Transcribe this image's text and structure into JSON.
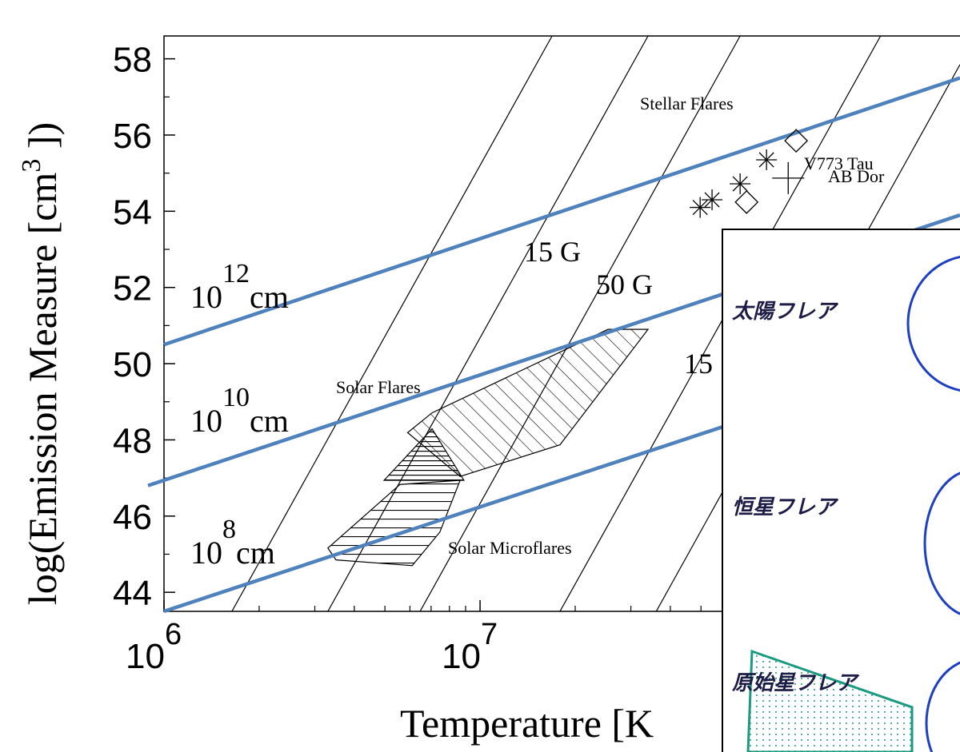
{
  "chart_data": {
    "type": "line",
    "x_label": "Temperature  [K",
    "y_label": {
      "text": "log(Emission Measure  [cm",
      "sup": "3",
      "end": " ])"
    },
    "xscale": "log",
    "xlim": [
      1000000,
      330000000
    ],
    "ylim": [
      43.5,
      58.6
    ],
    "xticks": [
      {
        "value": 1000000,
        "label": "10",
        "sup": "6"
      },
      {
        "value": 10000000,
        "label": "10",
        "sup": "7"
      }
    ],
    "xminor": [
      2000000,
      3000000,
      4000000,
      5000000,
      6000000,
      7000000,
      8000000,
      9000000,
      20000000,
      30000000,
      40000000,
      50000000,
      60000000,
      70000000,
      80000000,
      90000000,
      200000000,
      300000000
    ],
    "yticks": [
      44,
      46,
      48,
      50,
      52,
      54,
      56,
      58
    ],
    "yminor": [
      45,
      47,
      49,
      51,
      53,
      55,
      57
    ],
    "series": [
      {
        "color": "#4f81bd",
        "x": [
          1000000,
          330000000
        ],
        "values": [
          50.5,
          57.5
        ],
        "label": {
          "base": "10",
          "exp": "12",
          "unit": "cm"
        }
      },
      {
        "color": "#4f81bd",
        "x": [
          890000,
          330000000
        ],
        "values": [
          46.8,
          53.9
        ],
        "label": {
          "base": "10",
          "exp": "10",
          "unit": "cm"
        }
      },
      {
        "color": "#4f81bd",
        "x": [
          1000000,
          330000000
        ],
        "values": [
          43.5,
          50.4
        ],
        "label": {
          "base": "10",
          "exp": "8",
          "unit": "cm"
        }
      },
      {
        "color": "#000000",
        "x": [
          1640000,
          16900000
        ],
        "values": [
          43.5,
          58.6
        ]
      },
      {
        "color": "#000000",
        "x": [
          3300000,
          34000000
        ],
        "values": [
          43.5,
          58.6
        ]
      },
      {
        "color": "#000000",
        "x": [
          6460000,
          66500000
        ],
        "values": [
          43.5,
          58.6
        ]
      },
      {
        "color": "#000000",
        "x": [
          17900000,
          185000000
        ],
        "values": [
          43.5,
          58.6
        ]
      },
      {
        "color": "#000000",
        "x": [
          36100000,
          330000000
        ],
        "values": [
          43.5,
          57.85
        ]
      }
    ],
    "markers": [
      {
        "marker": "asterisk",
        "x": [
          49700000,
          54200000,
          66500000,
          80600000
        ],
        "values": [
          54.1,
          54.3,
          54.72,
          55.35
        ]
      },
      {
        "marker": "diamond",
        "x": [
          69700000,
          100000000
        ],
        "values": [
          54.24,
          55.85
        ]
      },
      {
        "marker": "plus",
        "x": [
          94400000
        ],
        "values": [
          54.87
        ]
      }
    ],
    "regions": [
      {
        "hatch": "diagonal",
        "x": [
          5900000,
          7050000,
          25400000,
          34000000,
          17900000,
          8650000
        ],
        "values": [
          48.19,
          48.71,
          50.9,
          50.9,
          47.87,
          47.04
        ]
      },
      {
        "hatch": "horizontal",
        "x": [
          3300000,
          5580000,
          8650000,
          7460000,
          6100000,
          3500000
        ],
        "values": [
          45.16,
          46.83,
          46.94,
          45.58,
          44.7,
          44.85
        ]
      },
      {
        "hatch": "dense",
        "x": [
          4970000,
          7050000,
          8890000
        ],
        "values": [
          46.94,
          48.29,
          46.94
        ]
      }
    ],
    "annotations": [
      "Stellar Flares",
      "V773 Tau",
      "AB Dor",
      "15 G",
      "50 G",
      "15",
      "Solar Flares",
      "Solar Microflares"
    ]
  },
  "inset": {
    "labels": [
      "太陽フレア",
      "恒星フレア",
      "原始星フレア"
    ]
  }
}
